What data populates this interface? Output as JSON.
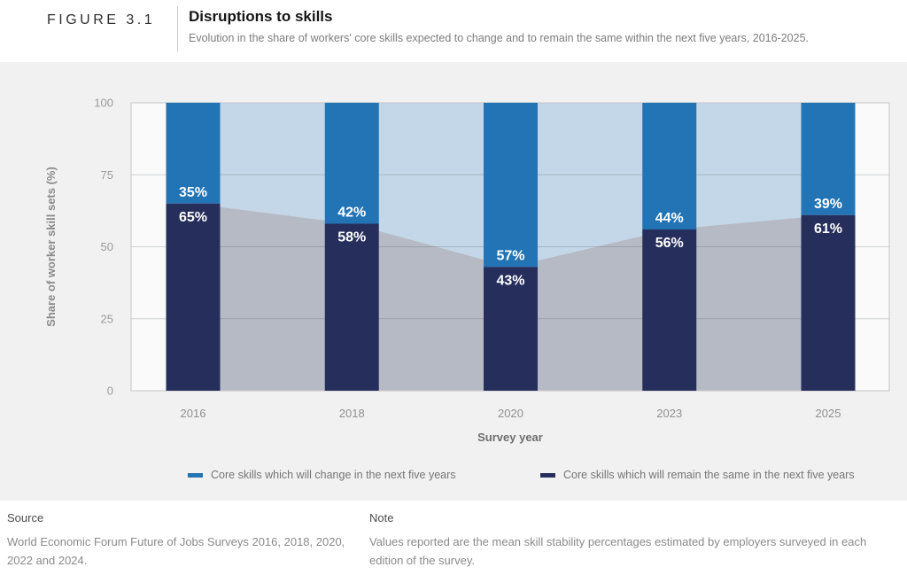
{
  "header": {
    "figure_label": "FIGURE 3.1",
    "title": "Disruptions to skills",
    "subtitle": "Evolution in the share of workers' core skills expected to change and to remain the same within the next five years, 2016-2025."
  },
  "chart_data": {
    "type": "bar",
    "subtype": "stacked-percentage-bars-with-background-area",
    "title": "Disruptions to skills",
    "xlabel": "Survey year",
    "ylabel": "Share of worker skill sets (%)",
    "ylim": [
      0,
      100
    ],
    "yticks": [
      0,
      25,
      50,
      75,
      100
    ],
    "grid": true,
    "legend_position": "bottom",
    "data_labels": true,
    "value_label_suffix": "%",
    "categories": [
      "2016",
      "2018",
      "2020",
      "2023",
      "2025"
    ],
    "series": [
      {
        "name": "Core skills which will change in the next five years",
        "role": "top",
        "values": [
          35,
          42,
          57,
          44,
          39
        ],
        "color": "#2274B5",
        "area_color": "#C3D7E8"
      },
      {
        "name": "Core skills which will remain the same in the next five years",
        "role": "bottom",
        "values": [
          65,
          58,
          43,
          56,
          61
        ],
        "color": "#262F5C",
        "area_color": "#B5BAC5"
      }
    ]
  },
  "footer": {
    "source_label": "Source",
    "source_text": "World Economic Forum Future of Jobs Surveys 2016, 2018, 2020, 2022 and 2024.",
    "note_label": "Note",
    "note_text": "Values reported are the mean skill stability percentages estimated by employers surveyed in each edition of the survey."
  }
}
